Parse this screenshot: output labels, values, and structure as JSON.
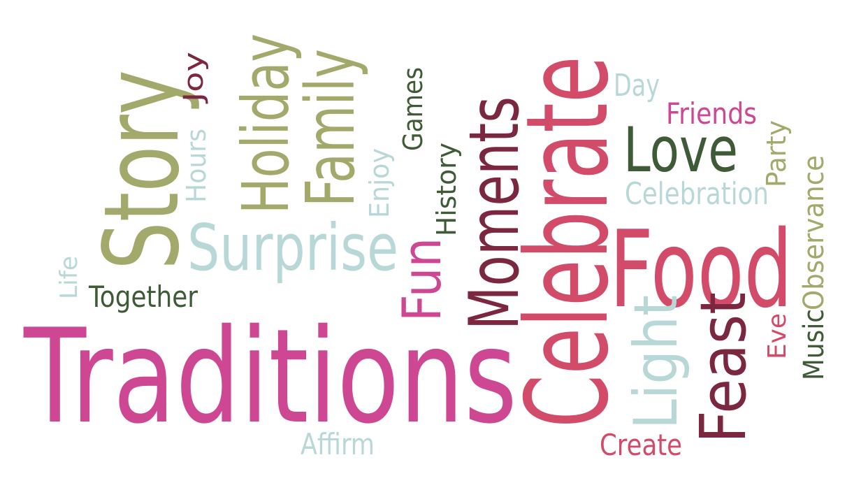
{
  "palette": {
    "pink": "#cd4793",
    "rose": "#d24c6a",
    "maroon": "#7c2740",
    "olive": "#a3a86b",
    "teal": "#b8d8d7",
    "forest": "#3f5a36"
  },
  "words": [
    {
      "id": "traditions",
      "text": "Traditions",
      "color": "pink"
    },
    {
      "id": "celebrate",
      "text": "Celebrate",
      "color": "rose"
    },
    {
      "id": "food",
      "text": "Food",
      "color": "rose"
    },
    {
      "id": "story",
      "text": "Story",
      "color": "olive"
    },
    {
      "id": "moments",
      "text": "Moments",
      "color": "maroon"
    },
    {
      "id": "surprise",
      "text": "Surprise",
      "color": "teal"
    },
    {
      "id": "holiday",
      "text": "Holiday",
      "color": "olive"
    },
    {
      "id": "family",
      "text": "Family",
      "color": "olive"
    },
    {
      "id": "love",
      "text": "Love",
      "color": "forest"
    },
    {
      "id": "feast",
      "text": "Feast",
      "color": "maroon"
    },
    {
      "id": "light",
      "text": "Light",
      "color": "teal"
    },
    {
      "id": "fun",
      "text": "Fun",
      "color": "pink"
    },
    {
      "id": "celebration",
      "text": "Celebration",
      "color": "teal"
    },
    {
      "id": "friends",
      "text": "Friends",
      "color": "pink"
    },
    {
      "id": "together",
      "text": "Together",
      "color": "forest"
    },
    {
      "id": "observance",
      "text": "Observance",
      "color": "olive"
    },
    {
      "id": "music",
      "text": "Music",
      "color": "forest"
    },
    {
      "id": "create",
      "text": "Create",
      "color": "rose"
    },
    {
      "id": "affirm",
      "text": "Affirm",
      "color": "teal"
    },
    {
      "id": "history",
      "text": "History",
      "color": "forest"
    },
    {
      "id": "games",
      "text": "Games",
      "color": "forest"
    },
    {
      "id": "enjoy",
      "text": "Enjoy",
      "color": "teal"
    },
    {
      "id": "hours",
      "text": "Hours",
      "color": "teal"
    },
    {
      "id": "joy",
      "text": "Joy",
      "color": "maroon"
    },
    {
      "id": "day",
      "text": "Day",
      "color": "teal"
    },
    {
      "id": "party",
      "text": "Party",
      "color": "olive"
    },
    {
      "id": "eve",
      "text": "Eve",
      "color": "rose"
    },
    {
      "id": "life",
      "text": "Life",
      "color": "teal"
    }
  ]
}
